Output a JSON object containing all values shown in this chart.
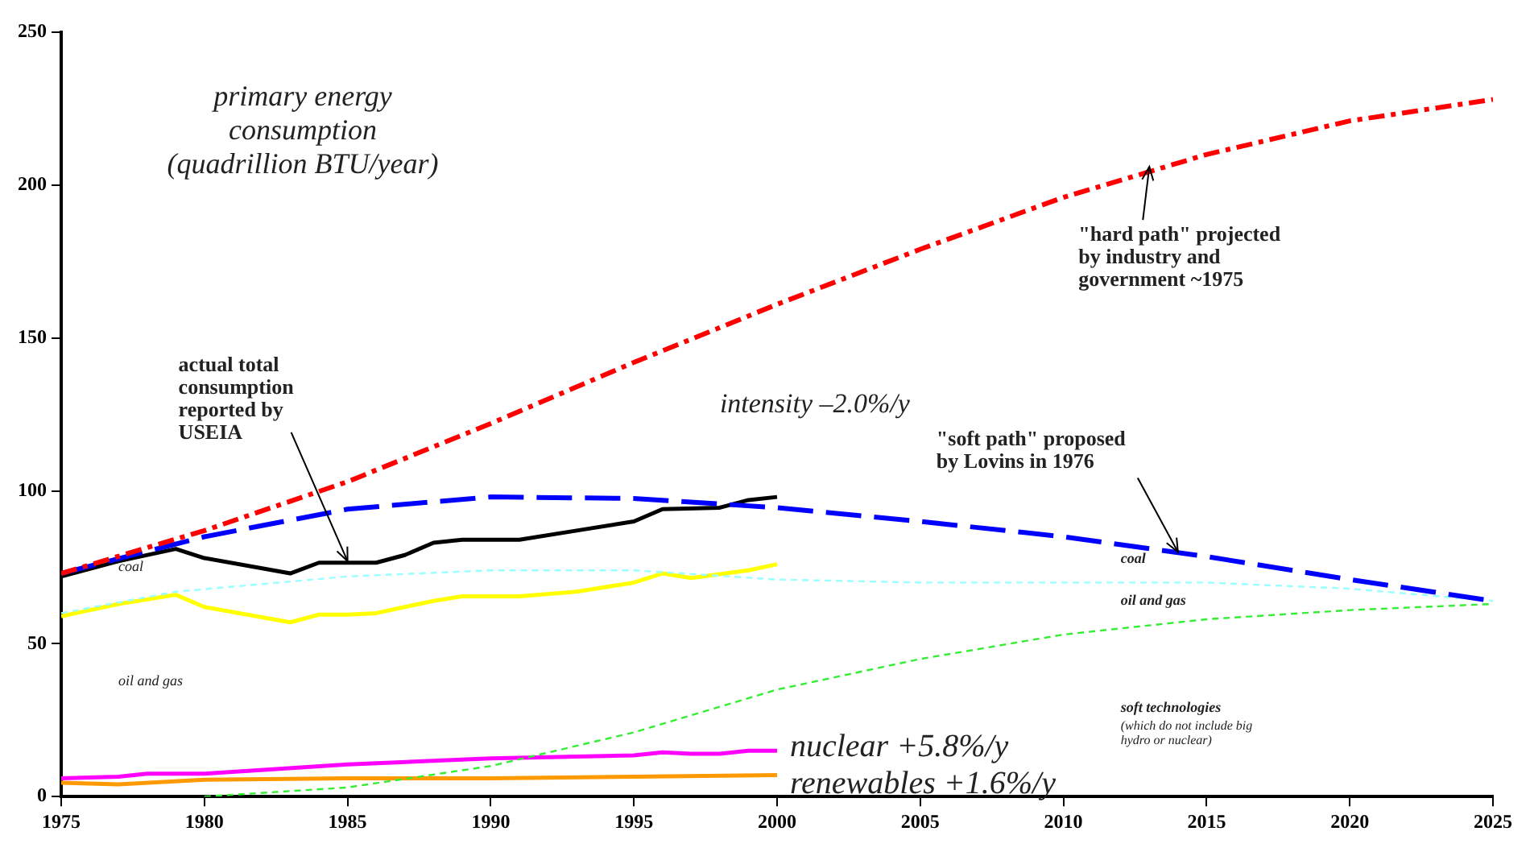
{
  "chart_data": {
    "type": "line",
    "title": "primary energy\nconsumption\n(quadrillion BTU/year)",
    "xlim": [
      1975,
      2025
    ],
    "xticks": [
      1975,
      1980,
      1985,
      1990,
      1995,
      2000,
      2005,
      2010,
      2015,
      2020,
      2025
    ],
    "ylim": [
      0,
      250
    ],
    "yticks": [
      0,
      50,
      100,
      150,
      200,
      250
    ],
    "grid": false,
    "legend": false,
    "marker": "none",
    "series": [
      {
        "color": "#ff0000",
        "line_style": "dashed",
        "x": [
          1975,
          1980,
          1985,
          1990,
          1995,
          2000,
          2005,
          2010,
          2015,
          2020,
          2025
        ],
        "values": [
          73,
          87,
          103,
          122,
          142,
          161,
          179,
          196,
          210,
          221,
          228
        ]
      },
      {
        "color": "#0000ff",
        "line_style": "dashed",
        "x": [
          1975,
          1980,
          1985,
          1990,
          1995,
          2000,
          2005,
          2010,
          2015,
          2020,
          2025
        ],
        "values": [
          73,
          85,
          94,
          98,
          97.5,
          94.5,
          90,
          85,
          78.5,
          71,
          64
        ]
      },
      {
        "color": "#99ffff",
        "line_style": "dashed",
        "x": [
          1975,
          1979,
          1985,
          1990,
          1995,
          2000,
          2005,
          2010,
          2015,
          2020,
          2025
        ],
        "values": [
          60,
          67,
          72,
          74,
          74,
          71,
          70,
          70,
          70,
          68,
          64
        ]
      },
      {
        "color": "#33ee33",
        "line_style": "dashed",
        "x": [
          1980,
          1985,
          1990,
          1995,
          2000,
          2005,
          2010,
          2015,
          2020,
          2025
        ],
        "values": [
          0,
          3,
          10,
          21,
          35,
          45,
          53,
          58,
          61,
          63
        ]
      },
      {
        "color": "#000000",
        "line_style": "solid",
        "x": [
          1975,
          1977,
          1979,
          1980,
          1983,
          1984,
          1985,
          1986,
          1987,
          1988,
          1989,
          1991,
          1993,
          1995,
          1996,
          1998,
          1999,
          2000
        ],
        "values": [
          72,
          77,
          81,
          78,
          73,
          76.5,
          76.5,
          76.5,
          79,
          83,
          84,
          84,
          87,
          90,
          94,
          94.5,
          97,
          98
        ]
      },
      {
        "color": "#ffff00",
        "line_style": "solid",
        "x": [
          1975,
          1977,
          1979,
          1980,
          1983,
          1984,
          1985,
          1986,
          1987,
          1988,
          1989,
          1991,
          1993,
          1995,
          1996,
          1997,
          1999,
          2000
        ],
        "values": [
          59,
          63,
          66,
          62,
          57,
          59.5,
          59.5,
          60,
          62,
          64,
          65.5,
          65.5,
          67,
          70,
          73,
          71.5,
          74,
          76
        ]
      },
      {
        "name": "nuclear +5.8%/y",
        "color": "#ff00ff",
        "line_style": "solid",
        "x": [
          1975,
          1977,
          1978,
          1980,
          1985,
          1990,
          1995,
          1996,
          1997,
          1998,
          1999,
          2000
        ],
        "values": [
          6,
          6.5,
          7.5,
          7.5,
          10.5,
          12.5,
          13.5,
          14.5,
          14,
          14,
          15,
          15
        ]
      },
      {
        "name": "renewables +1.6%/y",
        "color": "#ff9900",
        "line_style": "solid",
        "x": [
          1975,
          1977,
          1980,
          1985,
          1990,
          1995,
          2000
        ],
        "values": [
          4.5,
          4,
          5.5,
          6,
          6,
          6.5,
          7
        ]
      }
    ],
    "annotations": [
      {
        "text": "actual total\nconsumption\nreported by\nUSEIA",
        "x": 1985,
        "y": 77
      },
      {
        "text": "\"hard path\" projected\nby industry and\ngovernment ~1975",
        "x": 2013,
        "y": 206
      },
      {
        "text": "\"soft path\" proposed\nby Lovins in 1976",
        "x": 2014,
        "y": 80
      },
      "intensity –2.0%/y",
      "coal",
      "oil and gas",
      "coal",
      "oil and gas",
      "soft technologies",
      "(which do not include big\nhydro or nuclear)"
    ]
  }
}
